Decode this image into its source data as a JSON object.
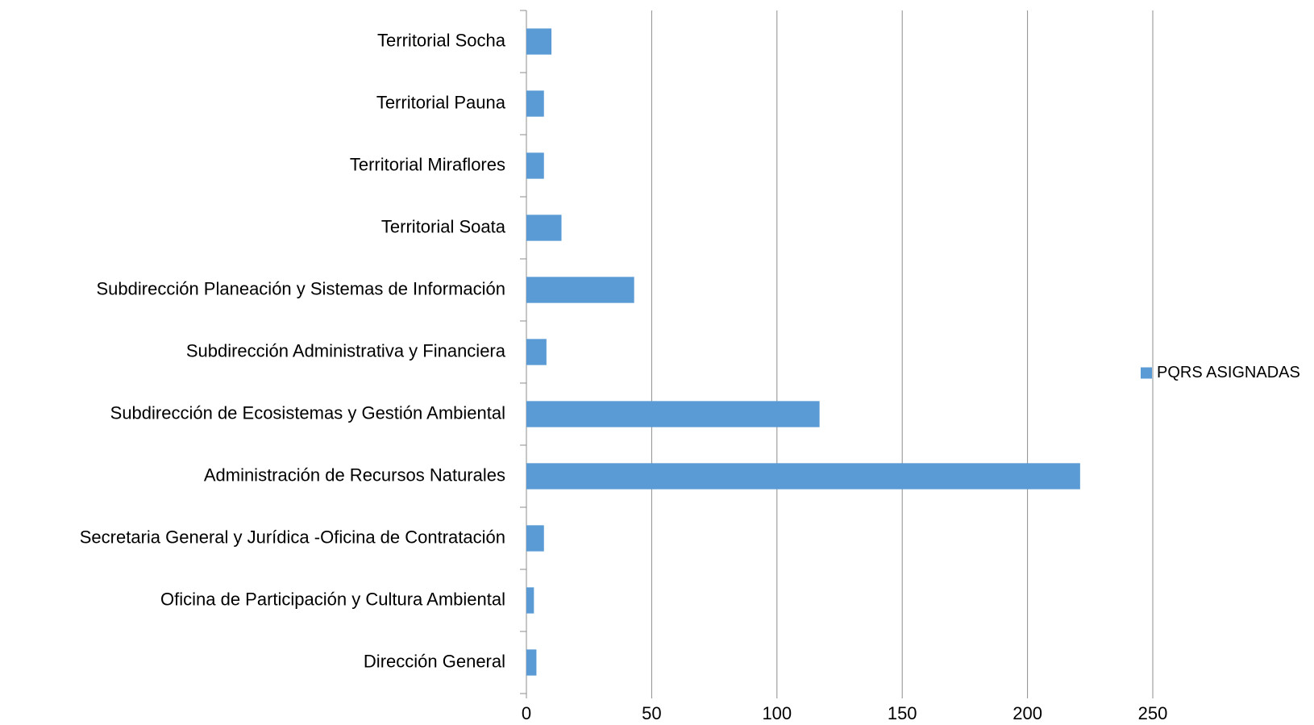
{
  "chart_data": {
    "type": "bar",
    "orientation": "horizontal",
    "categories": [
      "Territorial Socha",
      "Territorial Pauna",
      "Territorial Miraflores",
      "Territorial Soata",
      "Subdirección Planeación y Sistemas de Información",
      "Subdirección Administrativa y Financiera",
      "Subdirección de Ecosistemas y Gestión Ambiental",
      "Administración de Recursos Naturales",
      "Secretaria General y Jurídica -Oficina de Contratación",
      "Oficina de Participación y Cultura Ambiental",
      "Dirección General"
    ],
    "series": [
      {
        "name": "PQRS ASIGNADAS",
        "color": "#5b9bd5",
        "values": [
          10,
          7,
          7,
          14,
          43,
          8,
          117,
          221,
          7,
          3,
          4
        ]
      }
    ],
    "xlim": [
      0,
      250
    ],
    "xticks": [
      0,
      50,
      100,
      150,
      200,
      250
    ],
    "grid": true,
    "legend": "right"
  }
}
